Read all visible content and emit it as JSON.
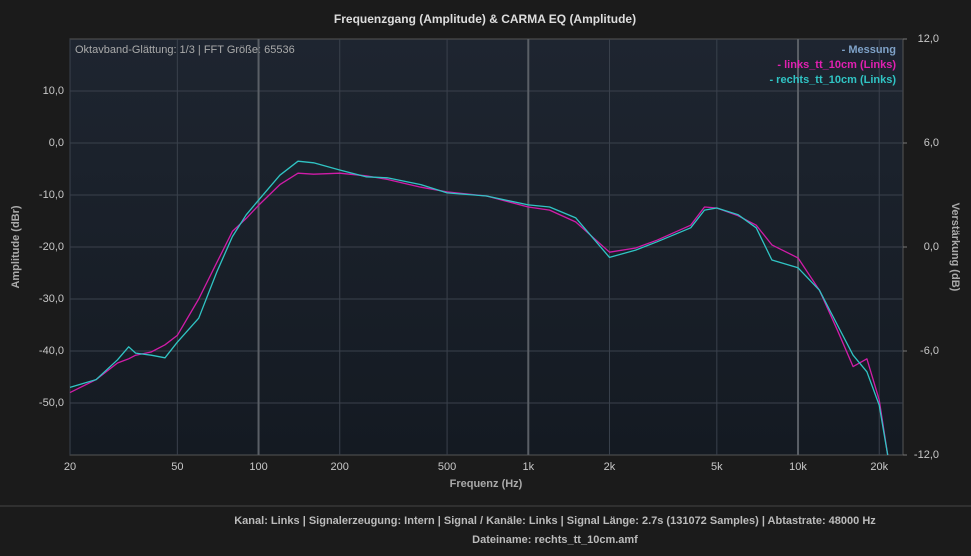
{
  "chart_data": {
    "type": "line",
    "title": "Frequenzgang (Amplitude) & CARMA EQ (Amplitude)",
    "info": "Oktavband-Glättung: 1/3 | FFT Größe: 65536",
    "xlabel": "Frequenz (Hz)",
    "ylabel": "Amplitude (dBr)",
    "y2label": "Verstärkung (dB)",
    "xscale": "log",
    "x": [
      20,
      25,
      30,
      33,
      35,
      40,
      45,
      50,
      60,
      70,
      80,
      90,
      100,
      120,
      140,
      160,
      200,
      250,
      300,
      400,
      500,
      700,
      1000,
      1200,
      1500,
      2000,
      2500,
      3000,
      4000,
      4500,
      5000,
      6000,
      7000,
      8000,
      10000,
      12000,
      14000,
      16000,
      18000,
      20000,
      21500
    ],
    "xlim": [
      20,
      24500
    ],
    "xticks": [
      20,
      50,
      100,
      200,
      500,
      {
        "value": 1000,
        "label": "1k"
      },
      {
        "value": 2000,
        "label": "2k"
      },
      {
        "value": 5000,
        "label": "5k"
      },
      {
        "value": 10000,
        "label": "10k"
      },
      {
        "value": 20000,
        "label": "20k"
      }
    ],
    "ylim": [
      -60,
      20
    ],
    "yticks": [
      {
        "value": 10,
        "label": "10,0"
      },
      {
        "value": 0,
        "label": "0,0"
      },
      {
        "value": -10,
        "label": "-10,0"
      },
      {
        "value": -20,
        "label": "-20,0"
      },
      {
        "value": -30,
        "label": "-30,0"
      },
      {
        "value": -40,
        "label": "-40,0"
      },
      {
        "value": -50,
        "label": "-50,0"
      }
    ],
    "y2lim": [
      -12,
      12
    ],
    "y2ticks": [
      {
        "value": 12,
        "label": "12,0"
      },
      {
        "value": 6,
        "label": "6,0"
      },
      {
        "value": 0,
        "label": "0,0"
      },
      {
        "value": -6,
        "label": "-6,0"
      },
      {
        "value": -12,
        "label": "-12,0"
      }
    ],
    "grid": true,
    "legend": [
      {
        "text": "- Messung",
        "color": "#7fa2c8"
      },
      {
        "text": "- links_tt_10cm (Links)",
        "color": "#e020b0"
      },
      {
        "text": "- rechts_tt_10cm (Links)",
        "color": "#30c4c4"
      }
    ],
    "series": [
      {
        "color": "#d01ca8",
        "values": [
          -48,
          -45.5,
          -42.3,
          -41.5,
          -40.8,
          -40.2,
          -38.8,
          -37,
          -30,
          -23,
          -17,
          -14.5,
          -12,
          -8,
          -5.8,
          -6,
          -5.8,
          -6.3,
          -7,
          -8.5,
          -9.4,
          -10.2,
          -12.3,
          -12.9,
          -15.2,
          -21,
          -20.2,
          -18.7,
          -15.8,
          -12.3,
          -12.5,
          -14,
          -15.8,
          -19.6,
          -22.1,
          -28.3,
          -36,
          -43,
          -41.5,
          -49.4,
          -60
        ]
      },
      {
        "color": "#30c4c4",
        "values": [
          -47,
          -45.5,
          -41.7,
          -39.2,
          -40.4,
          -40.8,
          -41.3,
          -38.3,
          -33.7,
          -24.8,
          -18,
          -13.8,
          -11,
          -6.2,
          -3.5,
          -3.8,
          -5.2,
          -6.5,
          -6.7,
          -8,
          -9.6,
          -10.2,
          -11.9,
          -12.3,
          -14.4,
          -22,
          -20.6,
          -19,
          -16.3,
          -12.9,
          -12.5,
          -13.8,
          -16.3,
          -22.5,
          -24,
          -28.3,
          -35,
          -40.8,
          -44,
          -50.4,
          -60
        ]
      }
    ]
  },
  "footer": {
    "line1": "Kanal: Links  |  Signalerzeugung: Intern  |  Signal / Kanäle: Links  |  Signal Länge: 2.7s (131072 Samples)  |  Abtastrate: 48000 Hz",
    "line2": "Dateiname: rechts_tt_10cm.amf"
  }
}
